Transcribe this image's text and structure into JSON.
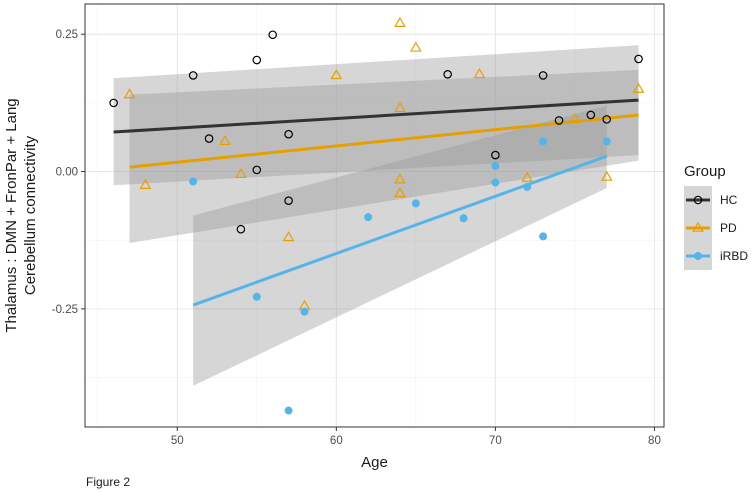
{
  "chart_data": {
    "type": "scatter",
    "title": "",
    "xlabel": "Age",
    "ylabel_lines": [
      "Thalamus : DMN + FronPar + Lang",
      "Cerebellum connectivity"
    ],
    "xlim": [
      44.2,
      80.6
    ],
    "ylim": [
      -0.465,
      0.305
    ],
    "x_ticks": [
      50,
      60,
      70,
      80
    ],
    "y_ticks": [
      0.25,
      0,
      -0.25
    ],
    "y_tick_labels": [
      "0.25",
      "0.00",
      "-0.25"
    ],
    "grid": true,
    "legend_position": "right",
    "legend_title": "Group",
    "caption": "Figure 2",
    "series": [
      {
        "name": "HC",
        "color": "#000000",
        "line_color": "#333333",
        "marker": "open-circle",
        "points": [
          [
            46,
            0.125
          ],
          [
            51,
            0.175
          ],
          [
            52,
            0.06
          ],
          [
            54,
            -0.105
          ],
          [
            55,
            0.203
          ],
          [
            55,
            0.003
          ],
          [
            56,
            0.249
          ],
          [
            57,
            0.068
          ],
          [
            57,
            -0.053
          ],
          [
            67,
            0.177
          ],
          [
            70,
            0.03
          ],
          [
            73,
            0.175
          ],
          [
            74,
            0.093
          ],
          [
            76,
            0.103
          ],
          [
            77,
            0.095
          ],
          [
            79,
            0.205
          ]
        ],
        "fit": {
          "x": [
            46,
            79
          ],
          "y": [
            0.072,
            0.13
          ]
        },
        "ci": {
          "x": [
            46,
            79
          ],
          "lower": [
            -0.025,
            0.03
          ],
          "upper": [
            0.17,
            0.23
          ]
        }
      },
      {
        "name": "PD",
        "color": "#E69F00",
        "line_color": "#E69F00",
        "marker": "open-triangle",
        "points": [
          [
            47,
            0.14
          ],
          [
            48,
            -0.025
          ],
          [
            53,
            0.055
          ],
          [
            54,
            -0.005
          ],
          [
            57,
            -0.12
          ],
          [
            58,
            -0.245
          ],
          [
            60,
            0.175
          ],
          [
            64,
            0.27
          ],
          [
            64,
            0.115
          ],
          [
            64,
            -0.015
          ],
          [
            64,
            -0.04
          ],
          [
            65,
            0.225
          ],
          [
            69,
            0.177
          ],
          [
            72,
            -0.012
          ],
          [
            75,
            0.095
          ],
          [
            77,
            -0.01
          ],
          [
            79,
            0.15
          ]
        ],
        "fit": {
          "x": [
            47,
            79
          ],
          "y": [
            0.008,
            0.103
          ]
        },
        "ci": {
          "x": [
            47,
            79
          ],
          "lower": [
            -0.13,
            0.02
          ],
          "upper": [
            0.14,
            0.185
          ]
        }
      },
      {
        "name": "iRBD",
        "color": "#56B4E9",
        "line_color": "#56B4E9",
        "marker": "filled-circle",
        "points": [
          [
            51,
            -0.018
          ],
          [
            55,
            -0.228
          ],
          [
            57,
            -0.435
          ],
          [
            58,
            -0.255
          ],
          [
            62,
            -0.083
          ],
          [
            65,
            -0.058
          ],
          [
            68,
            -0.085
          ],
          [
            70,
            0.01
          ],
          [
            70,
            -0.02
          ],
          [
            72,
            -0.028
          ],
          [
            73,
            0.055
          ],
          [
            73,
            -0.118
          ],
          [
            77,
            0.055
          ]
        ],
        "fit": {
          "x": [
            51,
            77
          ],
          "y": [
            -0.243,
            0.028
          ]
        },
        "ci": {
          "x": [
            51,
            77
          ],
          "lower": [
            -0.39,
            -0.03
          ],
          "upper": [
            -0.08,
            0.12
          ]
        }
      }
    ]
  }
}
